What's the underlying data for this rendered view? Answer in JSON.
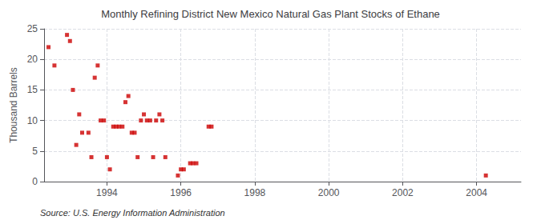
{
  "chart_data": {
    "type": "scatter",
    "title": "Monthly Refining District New Mexico Natural Gas Plant Stocks of Ethane",
    "ylabel": "Thousand Barrels",
    "annotations": [
      "Source: U.S. Energy Information Administration"
    ],
    "color": "#cc0000",
    "marker": "square",
    "grid": true,
    "xlim": [
      1992.3,
      2005.2
    ],
    "ylim": [
      0,
      25
    ],
    "xticks": [
      1994,
      1996,
      1998,
      2000,
      2002,
      2004
    ],
    "yticks": [
      0,
      5,
      10,
      15,
      20,
      25
    ],
    "x": [
      1992.42,
      1992.58,
      1992.92,
      1993.0,
      1993.08,
      1993.17,
      1993.25,
      1993.33,
      1993.5,
      1993.58,
      1993.67,
      1993.75,
      1993.83,
      1993.92,
      1994.0,
      1994.08,
      1994.17,
      1994.25,
      1994.33,
      1994.42,
      1994.5,
      1994.58,
      1994.67,
      1994.75,
      1994.83,
      1994.92,
      1995.0,
      1995.08,
      1995.17,
      1995.25,
      1995.33,
      1995.42,
      1995.5,
      1995.58,
      1995.92,
      1996.0,
      1996.08,
      1996.25,
      1996.33,
      1996.42,
      1996.75,
      1996.83,
      2004.25
    ],
    "values": [
      22,
      19,
      24,
      23,
      15,
      6,
      11,
      8,
      8,
      4,
      17,
      19,
      10,
      10,
      4,
      2,
      9,
      9,
      9,
      9,
      13,
      14,
      8,
      8,
      4,
      10,
      11,
      10,
      10,
      4,
      10,
      11,
      10,
      4,
      1,
      2,
      2,
      3,
      3,
      3,
      9,
      9,
      1
    ]
  }
}
